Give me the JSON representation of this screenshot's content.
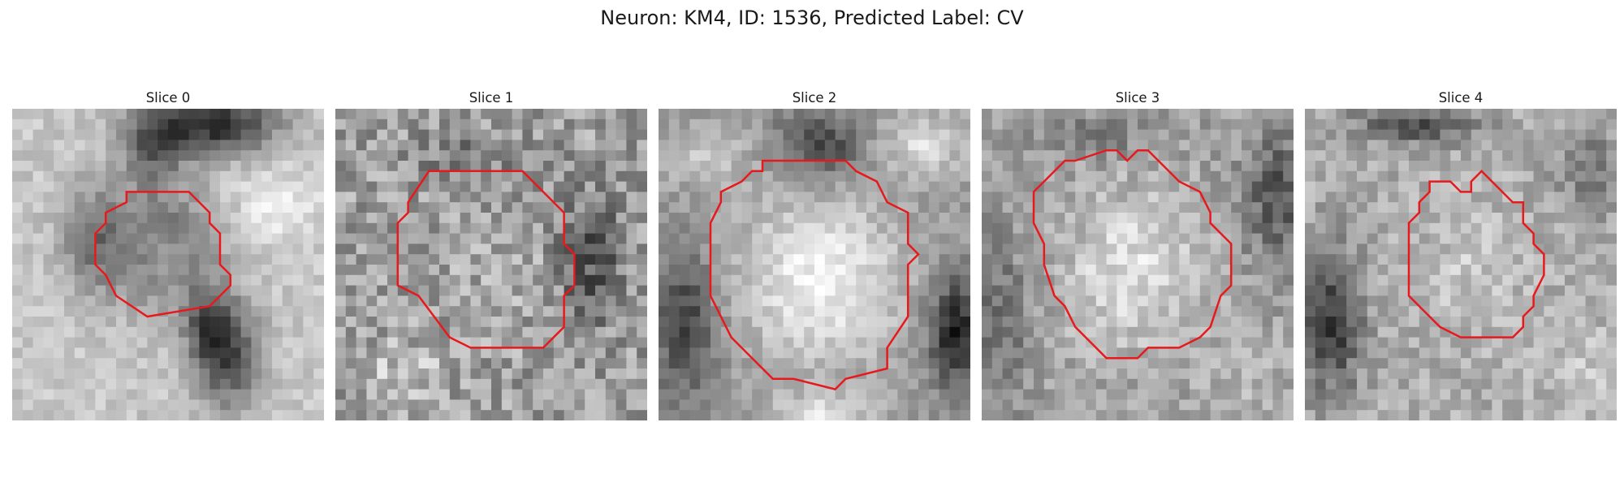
{
  "figure": {
    "title": "Neuron: KM4, ID: 1536, Predicted Label: CV",
    "contour_color": "#e8191c",
    "colormap": "gray",
    "grid_size": 30
  },
  "panels": [
    {
      "title": "Slice 0",
      "contour": [
        [
          11,
          8
        ],
        [
          17,
          8
        ],
        [
          19,
          10
        ],
        [
          19,
          11
        ],
        [
          20,
          12
        ],
        [
          20,
          15
        ],
        [
          21,
          16
        ],
        [
          21,
          17
        ],
        [
          19,
          19
        ],
        [
          13,
          20
        ],
        [
          10,
          18
        ],
        [
          9,
          16
        ],
        [
          8,
          15
        ],
        [
          8,
          12
        ],
        [
          9,
          11
        ],
        [
          9,
          10
        ],
        [
          11,
          9
        ]
      ]
    },
    {
      "title": "Slice 1",
      "contour": [
        [
          9,
          6
        ],
        [
          18,
          6
        ],
        [
          22,
          10
        ],
        [
          22,
          13
        ],
        [
          23,
          14
        ],
        [
          23,
          17
        ],
        [
          22,
          18
        ],
        [
          22,
          21
        ],
        [
          20,
          23
        ],
        [
          13,
          23
        ],
        [
          11,
          22
        ],
        [
          8,
          18
        ],
        [
          6,
          17
        ],
        [
          6,
          11
        ],
        [
          7,
          10
        ],
        [
          7,
          9
        ]
      ]
    },
    {
      "title": "Slice 2",
      "contour": [
        [
          10,
          5
        ],
        [
          18,
          5
        ],
        [
          19,
          6
        ],
        [
          21,
          7
        ],
        [
          22,
          9
        ],
        [
          24,
          10
        ],
        [
          24,
          13
        ],
        [
          25,
          14
        ],
        [
          24,
          15
        ],
        [
          24,
          20
        ],
        [
          22,
          23
        ],
        [
          22,
          25
        ],
        [
          18,
          26
        ],
        [
          17,
          27
        ],
        [
          13,
          26
        ],
        [
          11,
          26
        ],
        [
          10,
          25
        ],
        [
          9,
          24
        ],
        [
          7,
          22
        ],
        [
          6,
          20
        ],
        [
          5,
          18
        ],
        [
          5,
          11
        ],
        [
          6,
          9
        ],
        [
          6,
          8
        ],
        [
          8,
          7
        ],
        [
          9,
          6
        ],
        [
          10,
          6
        ]
      ]
    },
    {
      "title": "Slice 3",
      "contour": [
        [
          9,
          5
        ],
        [
          12,
          4
        ],
        [
          13,
          4
        ],
        [
          14,
          5
        ],
        [
          15,
          4
        ],
        [
          16,
          4
        ],
        [
          18,
          6
        ],
        [
          19,
          7
        ],
        [
          21,
          8
        ],
        [
          22,
          10
        ],
        [
          22,
          11
        ],
        [
          23,
          12
        ],
        [
          24,
          13
        ],
        [
          24,
          17
        ],
        [
          23,
          18
        ],
        [
          22,
          21
        ],
        [
          21,
          22
        ],
        [
          19,
          23
        ],
        [
          16,
          23
        ],
        [
          15,
          24
        ],
        [
          12,
          24
        ],
        [
          9,
          21
        ],
        [
          8,
          19
        ],
        [
          7,
          18
        ],
        [
          6,
          15
        ],
        [
          6,
          13
        ],
        [
          5,
          11
        ],
        [
          5,
          8
        ],
        [
          6,
          7
        ],
        [
          8,
          5
        ]
      ]
    },
    {
      "title": "Slice 4",
      "contour": [
        [
          12,
          7
        ],
        [
          14,
          7
        ],
        [
          15,
          8
        ],
        [
          16,
          8
        ],
        [
          16,
          7
        ],
        [
          17,
          6
        ],
        [
          18,
          7
        ],
        [
          20,
          9
        ],
        [
          21,
          9
        ],
        [
          21,
          11
        ],
        [
          22,
          12
        ],
        [
          22,
          13
        ],
        [
          23,
          14
        ],
        [
          23,
          16
        ],
        [
          22,
          18
        ],
        [
          22,
          19
        ],
        [
          21,
          20
        ],
        [
          21,
          21
        ],
        [
          20,
          22
        ],
        [
          19,
          22
        ],
        [
          15,
          22
        ],
        [
          13,
          21
        ],
        [
          12,
          20
        ],
        [
          10,
          18
        ],
        [
          10,
          11
        ],
        [
          11,
          10
        ],
        [
          11,
          9
        ],
        [
          12,
          8
        ]
      ]
    }
  ]
}
